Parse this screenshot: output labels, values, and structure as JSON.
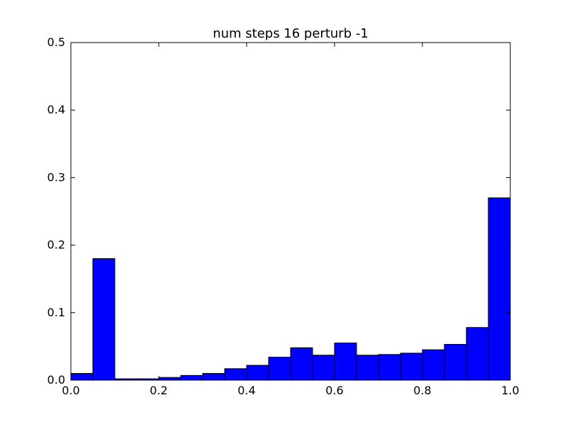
{
  "chart_data": {
    "type": "bar",
    "title": "num steps 16 perturb -1",
    "xlabel": "",
    "ylabel": "",
    "xlim": [
      0.0,
      1.0
    ],
    "ylim": [
      0.0,
      0.5
    ],
    "grid": false,
    "bar_color": "#0000ff",
    "edge_color": "#000000",
    "bin_edges": [
      0.0,
      0.05,
      0.1,
      0.15,
      0.2,
      0.25,
      0.3,
      0.35,
      0.4,
      0.45,
      0.5,
      0.55,
      0.6,
      0.65,
      0.7,
      0.75,
      0.8,
      0.85,
      0.9,
      0.95,
      1.0
    ],
    "values": [
      0.01,
      0.18,
      0.002,
      0.002,
      0.004,
      0.007,
      0.01,
      0.017,
      0.022,
      0.034,
      0.048,
      0.037,
      0.055,
      0.037,
      0.038,
      0.04,
      0.045,
      0.053,
      0.078,
      0.27
    ],
    "x_ticks": [
      "0.0",
      "0.2",
      "0.4",
      "0.6",
      "0.8",
      "1.0"
    ],
    "x_tick_values": [
      0.0,
      0.2,
      0.4,
      0.6,
      0.8,
      1.0
    ],
    "y_ticks": [
      "0.0",
      "0.1",
      "0.2",
      "0.3",
      "0.4",
      "0.5"
    ],
    "y_tick_values": [
      0.0,
      0.1,
      0.2,
      0.3,
      0.4,
      0.5
    ]
  }
}
